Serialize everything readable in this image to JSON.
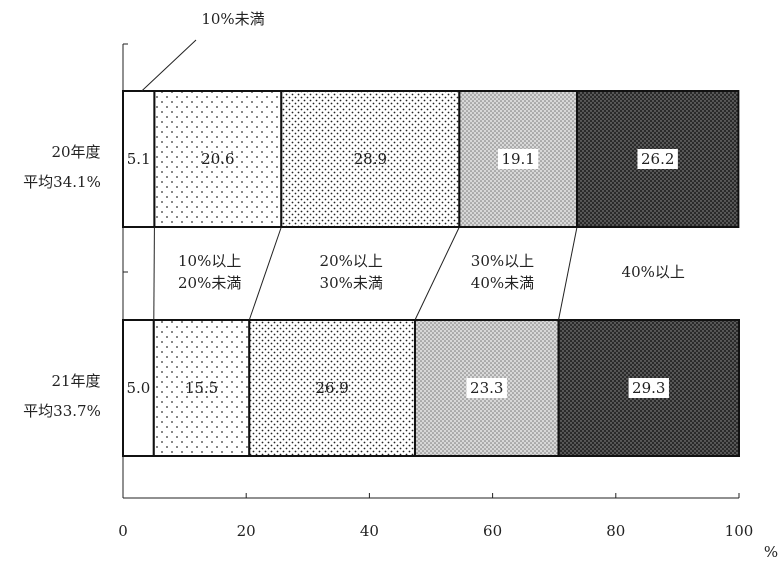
{
  "chart_data": {
    "type": "bar",
    "orientation": "horizontal",
    "stacked": true,
    "unit": "%",
    "xlim": [
      0,
      100
    ],
    "x_ticks": [
      "0",
      "20",
      "40",
      "60",
      "80",
      "100"
    ],
    "categories": [
      {
        "line1": "20年度",
        "line2": "平均34.1%"
      },
      {
        "line1": "21年度",
        "line2": "平均33.7%"
      }
    ],
    "series": [
      {
        "label_lines": [
          "10%未満"
        ],
        "values": [
          5.1,
          5.0
        ],
        "labels": [
          "5.1",
          "5.0"
        ],
        "fill": "#ffffff"
      },
      {
        "label_lines": [
          "10%以上",
          "20%未満"
        ],
        "values": [
          20.6,
          15.5
        ],
        "labels": [
          "20.6",
          "15.5"
        ],
        "fill": "#ffffff"
      },
      {
        "label_lines": [
          "20%以上",
          "30%未満"
        ],
        "values": [
          28.9,
          26.9
        ],
        "labels": [
          "28.9",
          "26.9"
        ],
        "fill": "#ffffff"
      },
      {
        "label_lines": [
          "30%以上",
          "40%未満"
        ],
        "values": [
          19.1,
          23.3
        ],
        "labels": [
          "19.1",
          "23.3"
        ],
        "fill": "#cfcfcf"
      },
      {
        "label_lines": [
          "40%以上"
        ],
        "values": [
          26.2,
          29.3
        ],
        "labels": [
          "26.2",
          "29.3"
        ],
        "fill": "#3a3a3a"
      }
    ],
    "grid": false,
    "legend": "none"
  }
}
